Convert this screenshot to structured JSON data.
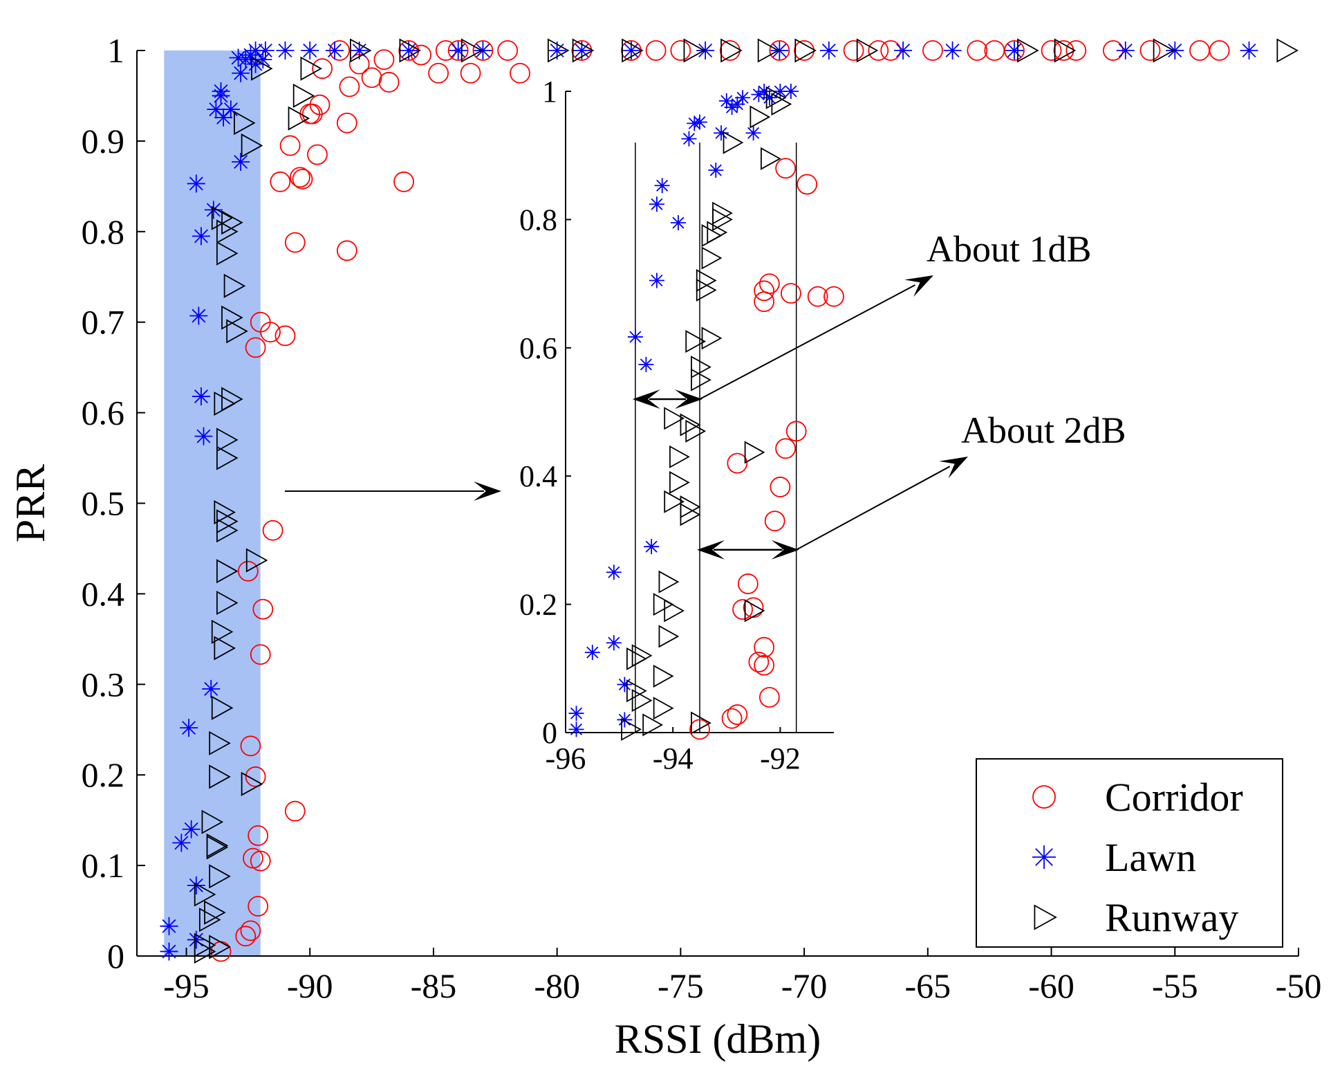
{
  "chart_data": [
    {
      "id": "main",
      "type": "scatter",
      "title": "",
      "xlabel": "RSSI (dBm)",
      "ylabel": "PRR",
      "xlim": [
        -97,
        -50
      ],
      "ylim": [
        0,
        1
      ],
      "xticks": [
        -95,
        -90,
        -85,
        -80,
        -75,
        -70,
        -65,
        -60,
        -55,
        -50
      ],
      "xtick_labels": [
        "-95",
        "-90",
        "-85",
        "-80",
        "-75",
        "-70",
        "-65",
        "-60",
        "-55",
        "-50"
      ],
      "yticks": [
        0,
        0.1,
        0.2,
        0.3,
        0.4,
        0.5,
        0.6,
        0.7,
        0.8,
        0.9,
        1
      ],
      "ytick_labels": [
        "0",
        "0.1",
        "0.2",
        "0.3",
        "0.4",
        "0.5",
        "0.6",
        "0.7",
        "0.8",
        "0.9",
        "1"
      ],
      "highlight_region": {
        "x": [
          -95.9,
          -92
        ],
        "y": [
          0,
          1
        ],
        "color": "#a7c1f5"
      },
      "legend": {
        "position": "bottom-right",
        "entries": [
          "Corridor",
          "Lawn",
          "Runway"
        ]
      },
      "series": [
        {
          "name": "Corridor",
          "marker": "circle",
          "color": "#ff0000",
          "x": [
            -93.6,
            -92.6,
            -92.4,
            -92.1,
            -92,
            -92.3,
            -92.1,
            -92.2,
            -90.6,
            -92.4,
            -92,
            -91.9,
            -91.5,
            -92.5,
            -92.2,
            -92,
            -91.6,
            -91,
            -90.6,
            -88.5,
            -90.4,
            -90.3,
            -91.2,
            -89.7,
            -90.8,
            -86.2,
            -89.9,
            -88.5,
            -89.6,
            -90,
            -89.5,
            -88.4,
            -87.5,
            -86.8,
            -84.8,
            -83.5,
            -81.5,
            -88,
            -87,
            -85.5,
            -84,
            -79,
            -76,
            -73,
            -71,
            -68,
            -66.5,
            -64.8,
            -62.3,
            -61.5,
            -60,
            -59,
            -57.5,
            -54,
            -53.2,
            -88.8,
            -86,
            -84.5,
            -83,
            -82,
            -77,
            -75,
            -70,
            -67,
            -63,
            -59.5,
            -56
          ],
          "y": [
            0.005,
            0.022,
            0.028,
            0.055,
            0.105,
            0.108,
            0.133,
            0.198,
            0.16,
            0.232,
            0.333,
            0.383,
            0.47,
            0.425,
            0.672,
            0.7,
            0.689,
            0.685,
            0.788,
            0.779,
            0.86,
            0.858,
            0.855,
            0.885,
            0.895,
            0.855,
            0.93,
            0.92,
            0.94,
            0.93,
            0.98,
            0.96,
            0.97,
            0.965,
            0.975,
            0.975,
            0.975,
            0.985,
            0.99,
            0.995,
            1,
            1,
            1,
            1,
            1,
            1,
            1,
            1,
            1,
            1,
            1,
            1,
            1,
            1,
            1,
            1,
            1,
            1,
            1,
            1,
            1,
            1,
            1,
            1,
            1,
            1,
            1
          ]
        },
        {
          "name": "Lawn",
          "marker": "asterisk",
          "color": "#0000ff",
          "x": [
            -95.7,
            -95.7,
            -94.6,
            -94.6,
            -95.2,
            -94.8,
            -94,
            -94.9,
            -94.3,
            -94.4,
            -94.5,
            -93.9,
            -94.6,
            -94.4,
            -93.5,
            -93.6,
            -92.8,
            -93.2,
            -93.8,
            -93.6,
            -92.8,
            -92.2,
            -92.6,
            -92.9,
            -92.4,
            -92.2,
            -91.9,
            -91.8,
            -91,
            -90,
            -89,
            -88,
            -86,
            -84,
            -83,
            -80,
            -79,
            -77,
            -74,
            -71,
            -69,
            -66,
            -64,
            -61.5,
            -57,
            -55,
            -52
          ],
          "y": [
            0.005,
            0.033,
            0.018,
            0.078,
            0.125,
            0.14,
            0.295,
            0.252,
            0.574,
            0.618,
            0.707,
            0.824,
            0.853,
            0.795,
            0.926,
            0.95,
            0.877,
            0.935,
            0.935,
            0.955,
            0.975,
            0.985,
            0.99,
            0.992,
            0.995,
            1,
            0.99,
            1,
            1,
            1,
            1,
            1,
            1,
            1,
            1,
            1,
            1,
            1,
            1,
            1,
            1,
            1,
            1,
            1,
            1,
            1,
            1
          ]
        },
        {
          "name": "Runway",
          "marker": "triangle-right",
          "color": "#000000",
          "x": [
            -94.3,
            -94.3,
            -93.7,
            -94.1,
            -93.9,
            -94.3,
            -93.7,
            -93.8,
            -93.8,
            -94,
            -93.7,
            -93.7,
            -93.6,
            -93.5,
            -93.6,
            -93.4,
            -93.4,
            -93.4,
            -93.4,
            -93.5,
            -93.4,
            -93.4,
            -93.5,
            -93.2,
            -93,
            -93.2,
            -93.1,
            -93.4,
            -93.4,
            -93.2,
            -93.6,
            -92.4,
            -92.2,
            -92.7,
            -92.4,
            -92,
            -90.5,
            -90.3,
            -90,
            -88,
            -86,
            -83.5,
            -80,
            -79,
            -77,
            -74.5,
            -73,
            -71.5,
            -70,
            -67.5,
            -61,
            -59.5,
            -55.5,
            -50.5
          ],
          "y": [
            0.005,
            0.012,
            0.01,
            0.04,
            0.048,
            0.068,
            0.088,
            0.12,
            0.122,
            0.148,
            0.198,
            0.235,
            0.274,
            0.34,
            0.358,
            0.39,
            0.425,
            0.47,
            0.48,
            0.49,
            0.55,
            0.57,
            0.61,
            0.615,
            0.69,
            0.705,
            0.74,
            0.776,
            0.8,
            0.81,
            0.815,
            0.19,
            0.437,
            0.92,
            0.895,
            0.98,
            0.925,
            0.95,
            0.98,
            1,
            1,
            1,
            1,
            1,
            1,
            1,
            1,
            1,
            1,
            1,
            1,
            1,
            1,
            1
          ]
        }
      ]
    },
    {
      "id": "inset",
      "type": "scatter",
      "title": "",
      "xlabel": "",
      "ylabel": "",
      "xlim": [
        -96,
        -91
      ],
      "ylim": [
        0,
        1
      ],
      "xticks": [
        -96,
        -94,
        -92
      ],
      "xtick_labels": [
        "-96",
        "-94",
        "-92"
      ],
      "yticks": [
        0,
        0.2,
        0.4,
        0.6,
        0.8,
        1
      ],
      "ytick_labels": [
        "0",
        "0.2",
        "0.4",
        "0.6",
        "0.8",
        "1"
      ],
      "reference_lines_x": [
        -94.7,
        -93.5,
        -91.7
      ],
      "annotations": [
        {
          "text": "About 1dB",
          "span": [
            -94.7,
            -93.5
          ],
          "y": 0.52
        },
        {
          "text": "About 2dB",
          "span": [
            -93.5,
            -91.7
          ],
          "y": 0.285
        }
      ],
      "series": [
        {
          "name": "Corridor",
          "marker": "circle",
          "color": "#ff0000",
          "x": [
            -93.5,
            -92.9,
            -92.8,
            -92.8,
            -92.7,
            -92.6,
            -92.5,
            -92.4,
            -92.3,
            -92.3,
            -92.2,
            -92.3,
            -92.2,
            -92.1,
            -92,
            -92.3,
            -91.9,
            -91.9,
            -91.8,
            -91.7,
            -91.5,
            -91.3,
            -91
          ],
          "y": [
            0.005,
            0.022,
            0.028,
            0.42,
            0.192,
            0.232,
            0.195,
            0.11,
            0.105,
            0.133,
            0.055,
            0.672,
            0.7,
            0.33,
            0.383,
            0.689,
            0.88,
            0.443,
            0.685,
            0.47,
            0.855,
            0.68,
            0.68
          ]
        },
        {
          "name": "Lawn",
          "marker": "asterisk",
          "color": "#0000ff",
          "x": [
            -95.8,
            -95.8,
            -95.5,
            -95.1,
            -95.1,
            -94.9,
            -94.9,
            -94.7,
            -94.5,
            -94.4,
            -94.3,
            -94.3,
            -94.2,
            -93.9,
            -93.7,
            -93.6,
            -93.5,
            -93.2,
            -93.1,
            -93,
            -92.9,
            -92.8,
            -92.7,
            -92.5,
            -92.4,
            -92.3,
            -92.2,
            -92,
            -91.8
          ],
          "y": [
            0.005,
            0.03,
            0.125,
            0.25,
            0.14,
            0.02,
            0.075,
            0.617,
            0.574,
            0.29,
            0.705,
            0.824,
            0.853,
            0.795,
            0.926,
            0.95,
            0.952,
            0.877,
            0.935,
            0.985,
            0.975,
            0.98,
            0.99,
            0.935,
            0.995,
            1,
            0.99,
            1,
            1
          ]
        },
        {
          "name": "Runway",
          "marker": "triangle-right",
          "color": "#000000",
          "x": [
            -94.8,
            -94.6,
            -94.7,
            -94.4,
            -94.7,
            -94.6,
            -94.2,
            -94.2,
            -94.1,
            -94.2,
            -94.1,
            -94,
            -94,
            -93.9,
            -93.9,
            -94,
            -93.7,
            -93.7,
            -93.6,
            -93.7,
            -93.6,
            -93.5,
            -93.5,
            -93.5,
            -93.3,
            -93.4,
            -93.4,
            -93.3,
            -93.3,
            -93.2,
            -93.1,
            -93.1,
            -92.9,
            -92.5,
            -92.5,
            -92.2,
            -92,
            -92.4,
            -92.1
          ],
          "y": [
            0.005,
            0.05,
            0.115,
            0.012,
            0.065,
            0.12,
            0.038,
            0.088,
            0.15,
            0.2,
            0.235,
            0.19,
            0.36,
            0.39,
            0.43,
            0.49,
            0.34,
            0.352,
            0.47,
            0.48,
            0.61,
            0.015,
            0.55,
            0.57,
            0.615,
            0.69,
            0.705,
            0.74,
            0.775,
            0.78,
            0.8,
            0.81,
            0.92,
            0.19,
            0.437,
            0.895,
            0.98,
            0.96,
            0.99
          ]
        }
      ]
    }
  ]
}
